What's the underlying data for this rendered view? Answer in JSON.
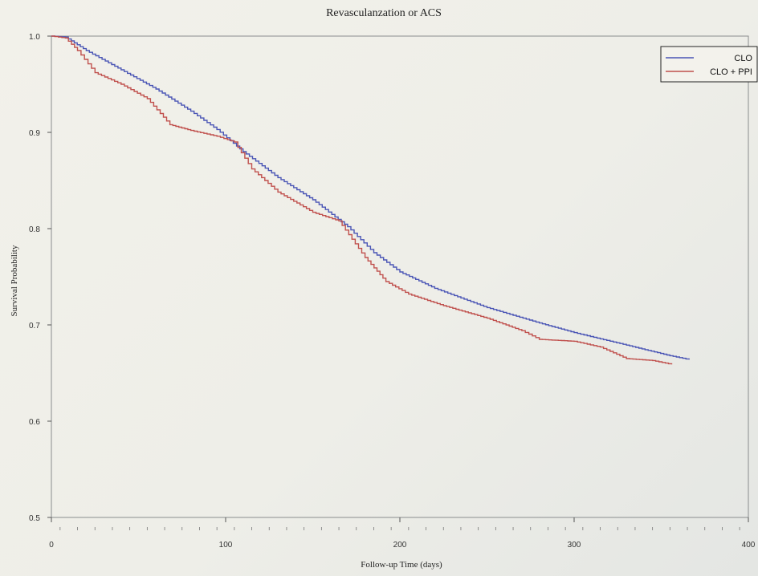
{
  "chart_data": {
    "type": "line",
    "title": "Revasculanzation or ACS",
    "xlabel": "Follow-up Time (days)",
    "ylabel": "Survival Probability",
    "xlim": [
      0,
      400
    ],
    "ylim": [
      0.5,
      1.0
    ],
    "xticks": [
      0,
      100,
      200,
      300,
      400
    ],
    "yticks": [
      0.5,
      0.6,
      0.7,
      0.8,
      0.9,
      1.0
    ],
    "xtick_labels": [
      "0",
      "100",
      "200",
      "300",
      "400"
    ],
    "ytick_labels": [
      "0.5",
      "0.6",
      "0.7",
      "0.8",
      "0.9",
      "1.0"
    ],
    "grid": false,
    "legend_position": "top-right",
    "series": [
      {
        "name": "CLO",
        "color": "#4a55b5",
        "x": [
          0,
          8,
          20,
          40,
          60,
          80,
          95,
          110,
          130,
          150,
          170,
          185,
          200,
          220,
          250,
          280,
          300,
          330,
          355,
          366
        ],
        "y": [
          1.0,
          0.999,
          0.985,
          0.965,
          0.945,
          0.922,
          0.903,
          0.88,
          0.853,
          0.83,
          0.802,
          0.775,
          0.755,
          0.738,
          0.718,
          0.702,
          0.692,
          0.679,
          0.668,
          0.664
        ]
      },
      {
        "name": "CLO + PPI",
        "color": "#c0504d",
        "x": [
          0,
          8,
          15,
          25,
          40,
          55,
          68,
          80,
          95,
          105,
          115,
          130,
          150,
          165,
          180,
          192,
          205,
          225,
          250,
          270,
          280,
          300,
          315,
          330,
          345,
          356
        ],
        "y": [
          1.0,
          0.998,
          0.985,
          0.962,
          0.95,
          0.935,
          0.908,
          0.902,
          0.896,
          0.89,
          0.862,
          0.838,
          0.817,
          0.808,
          0.77,
          0.745,
          0.732,
          0.72,
          0.707,
          0.694,
          0.685,
          0.683,
          0.677,
          0.665,
          0.663,
          0.659
        ]
      }
    ]
  }
}
